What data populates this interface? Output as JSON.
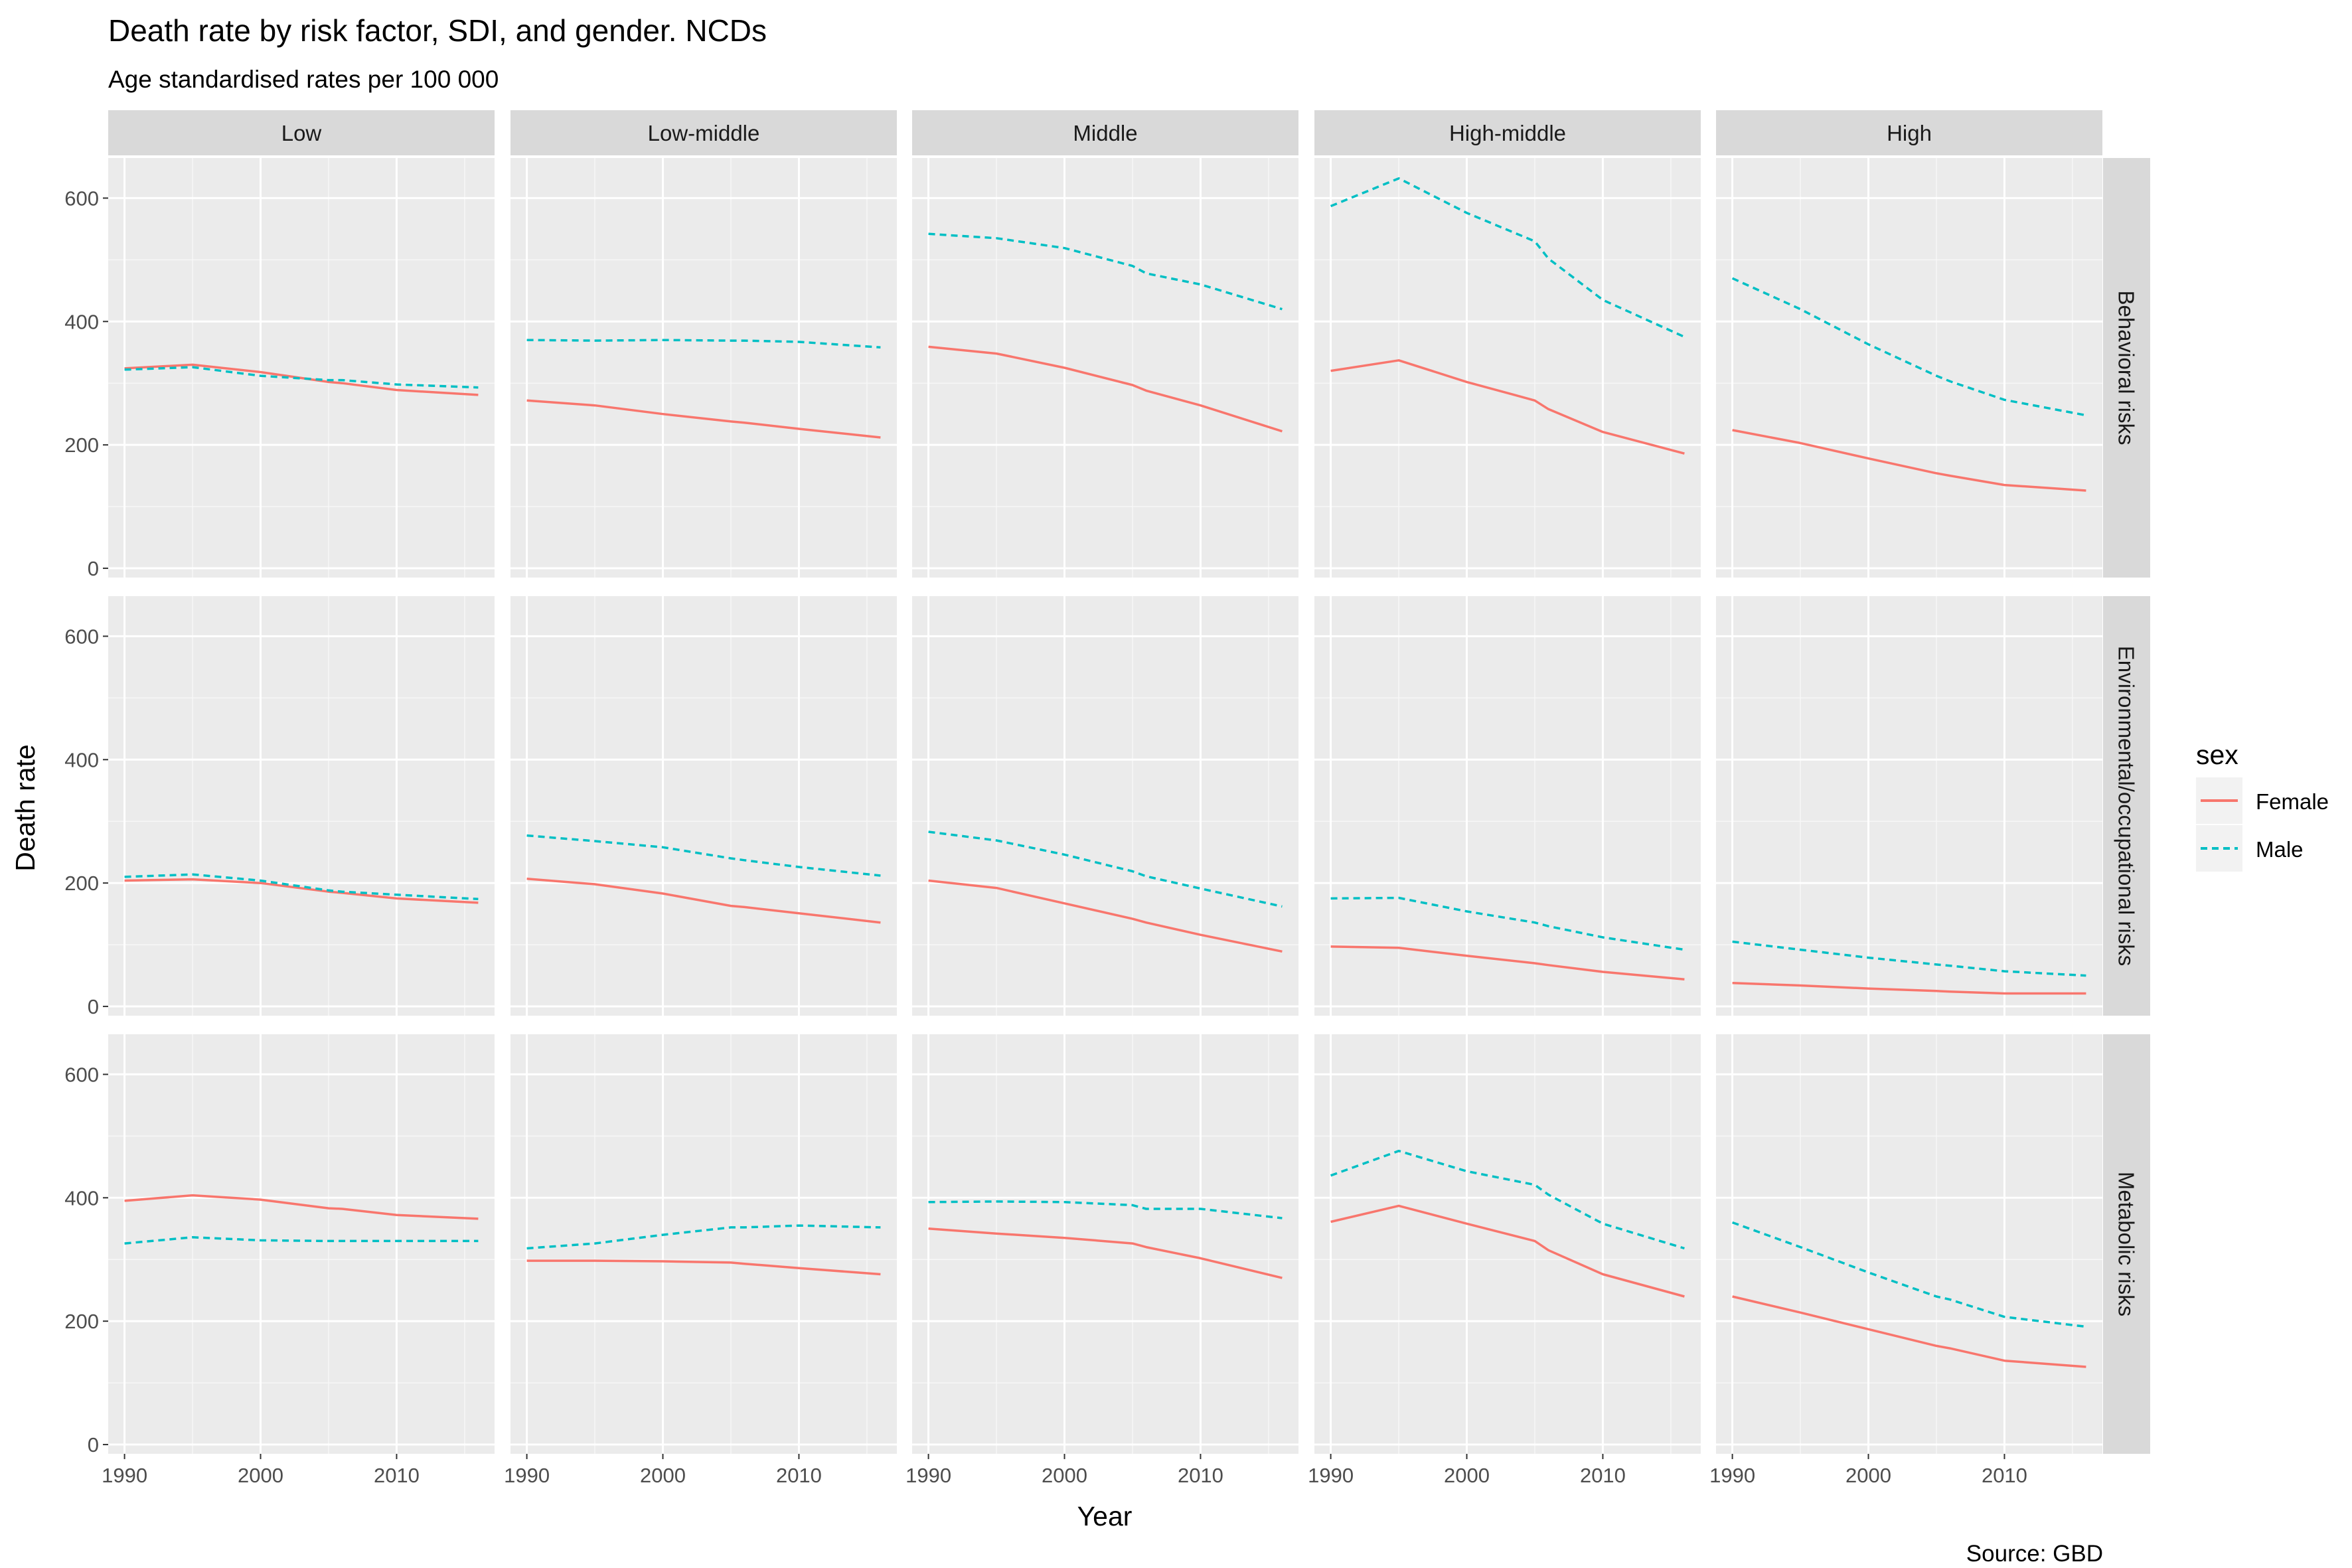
{
  "chart_data": {
    "type": "line",
    "title": "Death rate by risk factor, SDI, and gender. NCDs",
    "subtitle": "Age standardised rates per 100 000",
    "xlabel": "Year",
    "ylabel": "Death rate",
    "caption": "Source: GBD",
    "xlim": [
      1988.8,
      2017.2
    ],
    "ylim": [
      -15,
      665
    ],
    "x_ticks": [
      1990,
      2000,
      2010
    ],
    "y_ticks": [
      0,
      200,
      400,
      600
    ],
    "grid": true,
    "legend": {
      "title": "sex",
      "position": "right",
      "entries": [
        {
          "name": "Female",
          "color": "#f8766d",
          "linetype": "solid"
        },
        {
          "name": "Male",
          "color": "#00bfc4",
          "linetype": "dashed"
        }
      ]
    },
    "columns": [
      "Low",
      "Low-middle",
      "Middle",
      "High-middle",
      "High"
    ],
    "rows": [
      "Behavioral risks",
      "Environmental/occupational risks",
      "Metabolic risks"
    ],
    "x": [
      1990,
      1995,
      2000,
      2005,
      2006,
      2010,
      2016
    ],
    "panels": [
      [
        {
          "Female": [
            324,
            330,
            318,
            302,
            300,
            289,
            281
          ],
          "Male": [
            322,
            326,
            312,
            305,
            305,
            298,
            293
          ]
        },
        {
          "Female": [
            272,
            264,
            250,
            238,
            236,
            226,
            212
          ],
          "Male": [
            370,
            369,
            370,
            369,
            369,
            367,
            358
          ]
        },
        {
          "Female": [
            359,
            348,
            325,
            297,
            288,
            264,
            222
          ],
          "Male": [
            542,
            535,
            519,
            490,
            478,
            460,
            420
          ]
        },
        {
          "Female": [
            320,
            337,
            302,
            272,
            258,
            221,
            186
          ],
          "Male": [
            587,
            632,
            576,
            530,
            502,
            435,
            375
          ]
        },
        {
          "Female": [
            224,
            203,
            178,
            154,
            150,
            135,
            126
          ],
          "Male": [
            470,
            420,
            363,
            312,
            303,
            273,
            248
          ]
        }
      ],
      [
        {
          "Female": [
            204,
            206,
            200,
            186,
            184,
            175,
            168
          ],
          "Male": [
            210,
            214,
            204,
            188,
            186,
            181,
            174
          ]
        },
        {
          "Female": [
            207,
            198,
            183,
            163,
            161,
            151,
            136
          ],
          "Male": [
            277,
            268,
            258,
            240,
            237,
            226,
            212
          ]
        },
        {
          "Female": [
            204,
            192,
            167,
            142,
            136,
            116,
            89
          ],
          "Male": [
            283,
            269,
            246,
            219,
            211,
            191,
            162
          ]
        },
        {
          "Female": [
            97,
            95,
            82,
            70,
            67,
            56,
            44
          ],
          "Male": [
            175,
            176,
            154,
            136,
            130,
            112,
            92
          ]
        },
        {
          "Female": [
            38,
            34,
            29,
            25,
            24,
            21,
            21
          ],
          "Male": [
            105,
            92,
            79,
            68,
            66,
            57,
            50
          ]
        }
      ],
      [
        {
          "Female": [
            395,
            404,
            397,
            383,
            382,
            372,
            366
          ],
          "Male": [
            326,
            336,
            331,
            330,
            330,
            330,
            330
          ]
        },
        {
          "Female": [
            298,
            298,
            297,
            295,
            293,
            286,
            276
          ],
          "Male": [
            318,
            326,
            340,
            352,
            352,
            355,
            352
          ]
        },
        {
          "Female": [
            350,
            342,
            335,
            326,
            320,
            302,
            270
          ],
          "Male": [
            393,
            394,
            393,
            388,
            382,
            382,
            367
          ]
        },
        {
          "Female": [
            361,
            387,
            358,
            330,
            315,
            276,
            240
          ],
          "Male": [
            436,
            476,
            443,
            421,
            405,
            358,
            318
          ]
        },
        {
          "Female": [
            240,
            214,
            187,
            160,
            156,
            136,
            126
          ],
          "Male": [
            360,
            320,
            279,
            240,
            235,
            207,
            191
          ]
        }
      ]
    ]
  }
}
